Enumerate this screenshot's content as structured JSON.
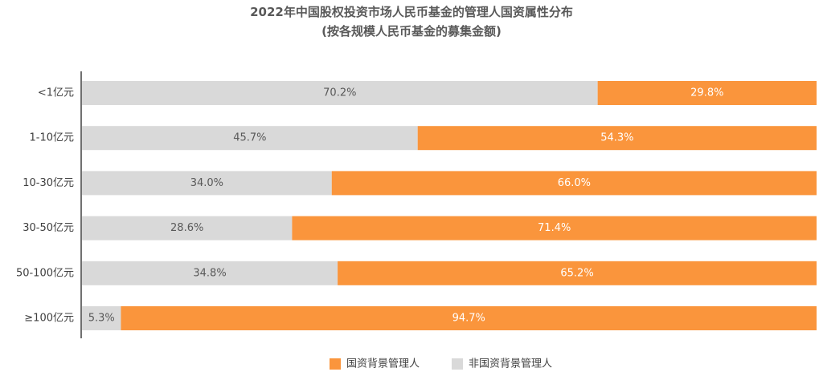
{
  "chart_data": {
    "type": "bar",
    "orientation": "horizontal",
    "stacked": true,
    "percent": true,
    "title": "2022年中国股权投资市场人民币基金的管理人国资属性分布",
    "subtitle": "(按各规模人民币基金的募集金额)",
    "categories": [
      "<1亿元",
      "1-10亿元",
      "10-30亿元",
      "30-50亿元",
      "50-100亿元",
      "≥100亿元"
    ],
    "series": [
      {
        "name": "非国资背景管理人",
        "color": "#d9d9d9",
        "label_color": "#595959",
        "values": [
          70.2,
          45.7,
          34.0,
          28.6,
          34.8,
          5.3
        ],
        "labels": [
          "70.2%",
          "45.7%",
          "34.0%",
          "28.6%",
          "34.8%",
          "5.3%"
        ]
      },
      {
        "name": "国资背景管理人",
        "color": "#fa953c",
        "label_color": "#ffffff",
        "values": [
          29.8,
          54.3,
          66.0,
          71.4,
          65.2,
          94.7
        ],
        "labels": [
          "29.8%",
          "54.3%",
          "66.0%",
          "71.4%",
          "65.2%",
          "94.7%"
        ]
      }
    ],
    "xlim": [
      0,
      100
    ],
    "grid": false,
    "legend": {
      "position": "bottom",
      "order": [
        "国资背景管理人",
        "非国资背景管理人"
      ]
    }
  }
}
